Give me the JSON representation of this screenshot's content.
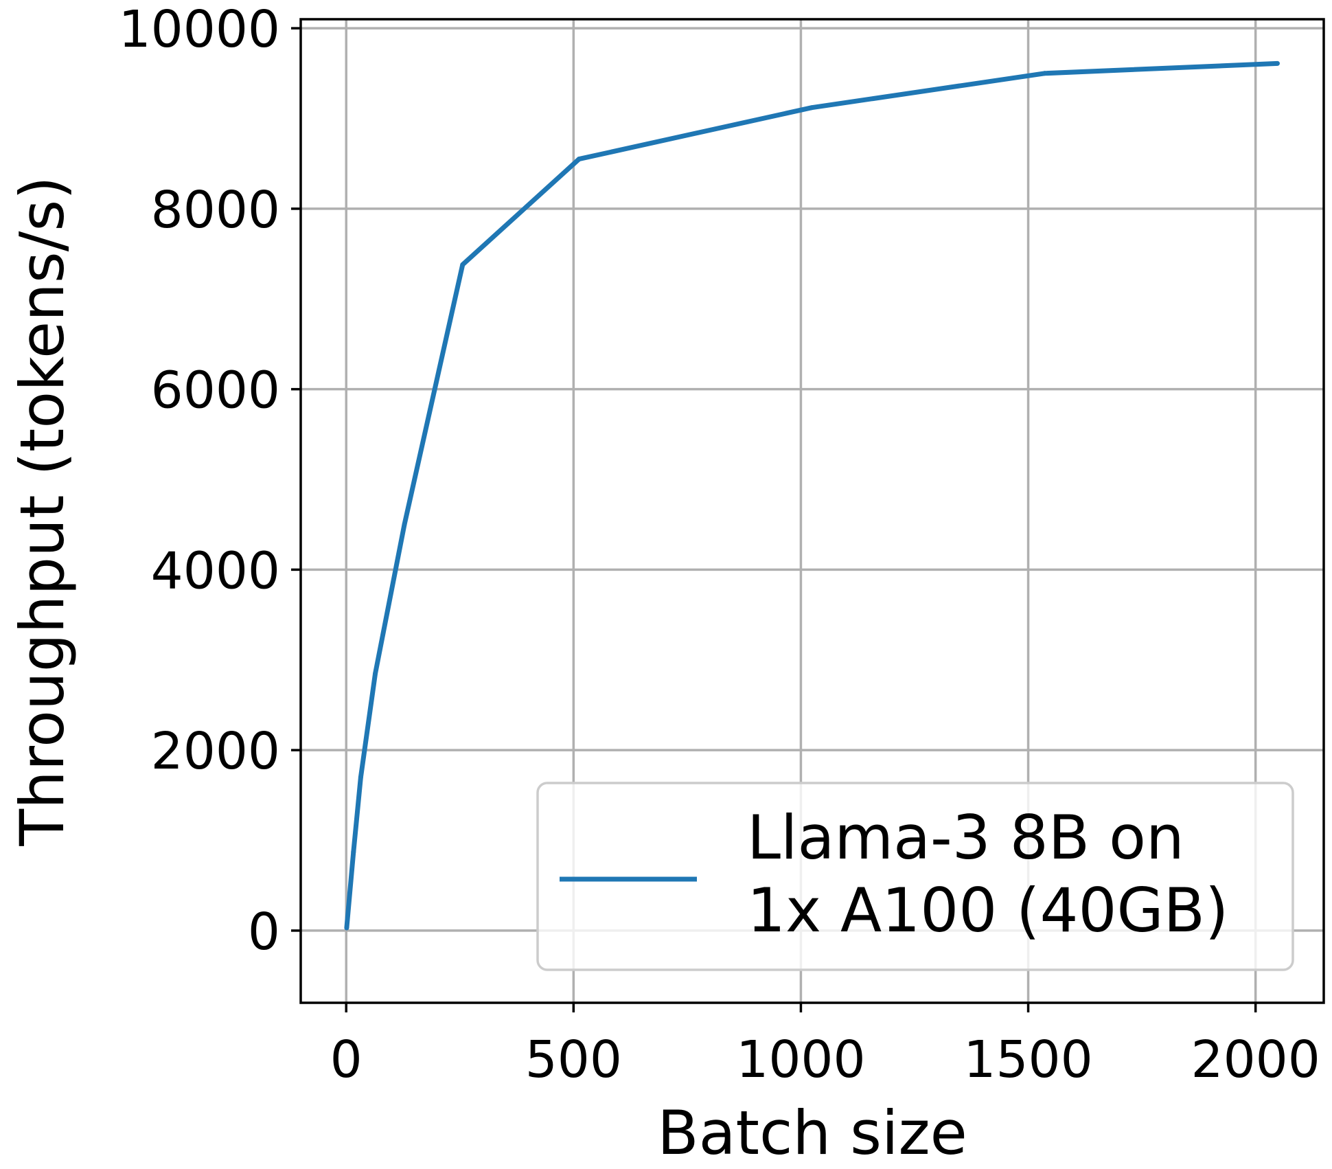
{
  "chart_data": {
    "type": "line",
    "title": "",
    "xlabel": "Batch size",
    "ylabel": "Throughput (tokens/s)",
    "xlim": [
      -100,
      2150
    ],
    "ylim": [
      -800,
      10100
    ],
    "grid": true,
    "legend_position": "lower-right",
    "x_ticks": [
      0,
      500,
      1000,
      1500,
      2000
    ],
    "x_tick_labels": [
      "0",
      "500",
      "1000",
      "1500",
      "2000"
    ],
    "y_ticks": [
      0,
      2000,
      4000,
      6000,
      8000,
      10000
    ],
    "y_tick_labels": [
      "0",
      "2000",
      "4000",
      "6000",
      "8000",
      "10000"
    ],
    "series": [
      {
        "name": "Llama-3 8B on 1x A100 (40GB)",
        "legend_lines": [
          "Llama-3 8B on",
          "1x A100 (40GB)"
        ],
        "color": "#1f77b4",
        "x": [
          1,
          16,
          32,
          64,
          128,
          256,
          512,
          1024,
          1536,
          2048
        ],
        "y": [
          30,
          870,
          1700,
          2850,
          4500,
          7380,
          8550,
          9120,
          9500,
          9610
        ]
      }
    ]
  }
}
